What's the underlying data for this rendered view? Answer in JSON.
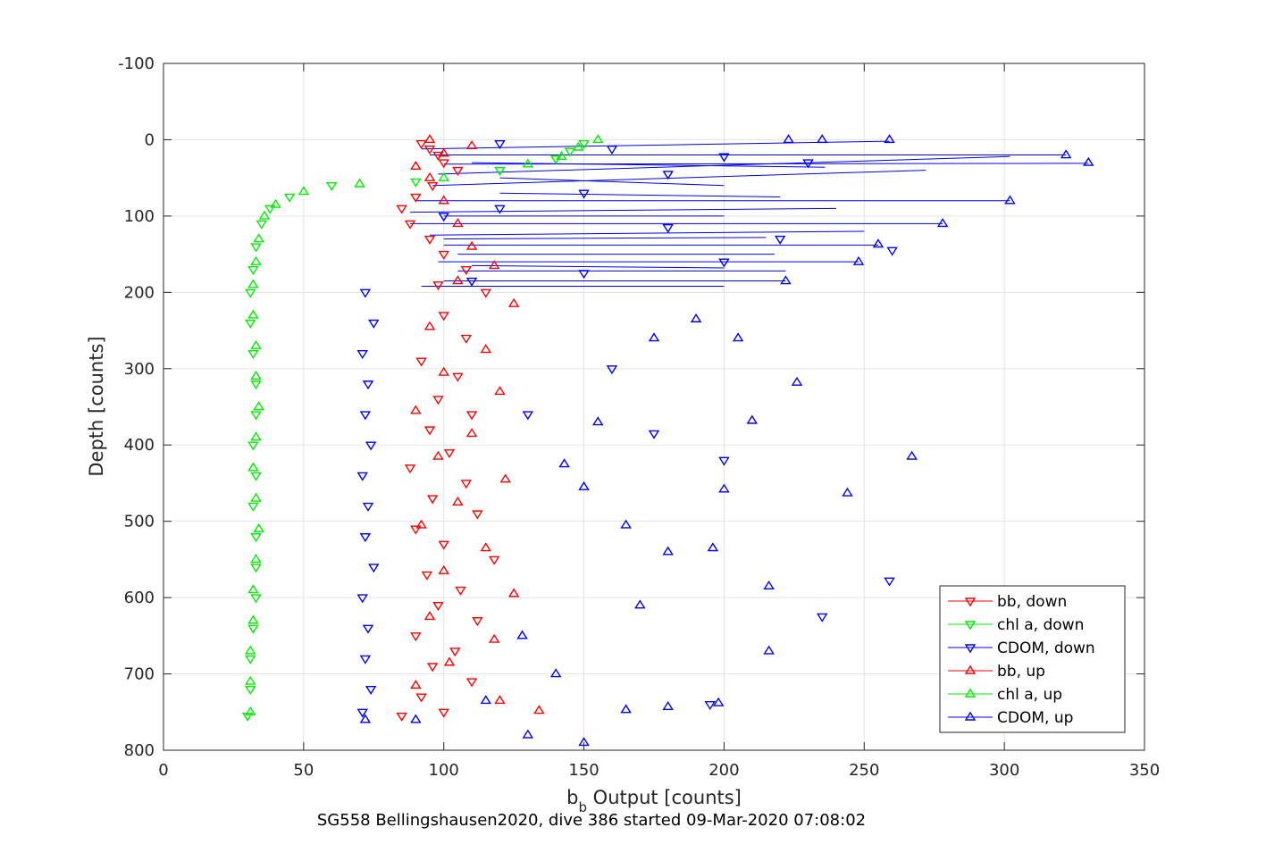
{
  "chart_data": {
    "type": "scatter",
    "xlabel_base": "b",
    "xlabel_sub": "b",
    "xlabel_rest": " Output [counts]",
    "ylabel": "Depth [counts]",
    "caption": "SG558 Bellingshausen2020, dive 386 started 09-Mar-2020 07:08:02",
    "xlim": [
      0,
      350
    ],
    "ylim": [
      -100,
      800
    ],
    "y_reversed": true,
    "grid": true,
    "x_ticks": [
      "0",
      "50",
      "100",
      "150",
      "200",
      "250",
      "300",
      "350"
    ],
    "y_ticks": [
      "-100",
      "0",
      "100",
      "200",
      "300",
      "400",
      "500",
      "600",
      "700",
      "800"
    ],
    "legend_position": "bottom-right",
    "series": [
      {
        "name": "bb, down",
        "color": "#ff0000",
        "marker": "triangle-down",
        "points": [
          [
            92,
            5
          ],
          [
            95,
            12
          ],
          [
            98,
            20
          ],
          [
            100,
            30
          ],
          [
            105,
            40
          ],
          [
            96,
            60
          ],
          [
            90,
            75
          ],
          [
            85,
            90
          ],
          [
            88,
            110
          ],
          [
            95,
            130
          ],
          [
            100,
            150
          ],
          [
            108,
            170
          ],
          [
            98,
            190
          ],
          [
            115,
            200
          ],
          [
            100,
            230
          ],
          [
            108,
            260
          ],
          [
            92,
            290
          ],
          [
            105,
            310
          ],
          [
            98,
            340
          ],
          [
            110,
            360
          ],
          [
            95,
            380
          ],
          [
            102,
            410
          ],
          [
            88,
            430
          ],
          [
            108,
            450
          ],
          [
            96,
            470
          ],
          [
            112,
            490
          ],
          [
            90,
            510
          ],
          [
            100,
            530
          ],
          [
            118,
            550
          ],
          [
            94,
            570
          ],
          [
            106,
            590
          ],
          [
            98,
            610
          ],
          [
            112,
            630
          ],
          [
            90,
            650
          ],
          [
            104,
            670
          ],
          [
            96,
            690
          ],
          [
            110,
            710
          ],
          [
            92,
            730
          ],
          [
            100,
            750
          ],
          [
            85,
            755
          ]
        ]
      },
      {
        "name": "chl a, down",
        "color": "#00ee00",
        "marker": "triangle-down",
        "points": [
          [
            150,
            5
          ],
          [
            145,
            15
          ],
          [
            140,
            25
          ],
          [
            120,
            40
          ],
          [
            90,
            55
          ],
          [
            60,
            60
          ],
          [
            45,
            75
          ],
          [
            38,
            90
          ],
          [
            35,
            110
          ],
          [
            33,
            140
          ],
          [
            32,
            170
          ],
          [
            31,
            200
          ],
          [
            31,
            240
          ],
          [
            32,
            280
          ],
          [
            33,
            320
          ],
          [
            33,
            360
          ],
          [
            32,
            400
          ],
          [
            33,
            440
          ],
          [
            32,
            480
          ],
          [
            33,
            520
          ],
          [
            33,
            560
          ],
          [
            33,
            600
          ],
          [
            32,
            640
          ],
          [
            31,
            680
          ],
          [
            31,
            720
          ],
          [
            30,
            755
          ]
        ]
      },
      {
        "name": "CDOM, down",
        "color": "#0000ff",
        "marker": "triangle-down",
        "points": [
          [
            120,
            5
          ],
          [
            160,
            12
          ],
          [
            200,
            22
          ],
          [
            230,
            30
          ],
          [
            180,
            45
          ],
          [
            150,
            70
          ],
          [
            120,
            90
          ],
          [
            100,
            100
          ],
          [
            180,
            115
          ],
          [
            220,
            130
          ],
          [
            260,
            145
          ],
          [
            200,
            160
          ],
          [
            150,
            175
          ],
          [
            110,
            185
          ],
          [
            72,
            200
          ],
          [
            75,
            240
          ],
          [
            71,
            280
          ],
          [
            73,
            320
          ],
          [
            72,
            360
          ],
          [
            74,
            400
          ],
          [
            71,
            440
          ],
          [
            73,
            480
          ],
          [
            72,
            520
          ],
          [
            75,
            560
          ],
          [
            71,
            600
          ],
          [
            73,
            640
          ],
          [
            72,
            680
          ],
          [
            74,
            720
          ],
          [
            71,
            750
          ],
          [
            160,
            300
          ],
          [
            200,
            420
          ],
          [
            235,
            625
          ],
          [
            259,
            578
          ],
          [
            195,
            740
          ],
          [
            175,
            385
          ],
          [
            130,
            360
          ]
        ]
      },
      {
        "name": "bb, up",
        "color": "#ff0000",
        "marker": "triangle-up",
        "points": [
          [
            95,
            0
          ],
          [
            110,
            8
          ],
          [
            100,
            18
          ],
          [
            90,
            35
          ],
          [
            95,
            50
          ],
          [
            100,
            80
          ],
          [
            105,
            110
          ],
          [
            110,
            140
          ],
          [
            118,
            165
          ],
          [
            105,
            185
          ],
          [
            125,
            215
          ],
          [
            95,
            245
          ],
          [
            115,
            275
          ],
          [
            100,
            305
          ],
          [
            120,
            330
          ],
          [
            90,
            355
          ],
          [
            110,
            385
          ],
          [
            98,
            415
          ],
          [
            122,
            445
          ],
          [
            105,
            475
          ],
          [
            92,
            505
          ],
          [
            115,
            535
          ],
          [
            100,
            565
          ],
          [
            125,
            595
          ],
          [
            95,
            625
          ],
          [
            118,
            655
          ],
          [
            102,
            685
          ],
          [
            90,
            715
          ],
          [
            120,
            735
          ],
          [
            134,
            748
          ]
        ]
      },
      {
        "name": "chl a, up",
        "color": "#00ee00",
        "marker": "triangle-up",
        "points": [
          [
            155,
            0
          ],
          [
            148,
            10
          ],
          [
            142,
            22
          ],
          [
            130,
            32
          ],
          [
            100,
            50
          ],
          [
            70,
            58
          ],
          [
            50,
            68
          ],
          [
            40,
            85
          ],
          [
            36,
            100
          ],
          [
            34,
            130
          ],
          [
            33,
            160
          ],
          [
            32,
            190
          ],
          [
            32,
            230
          ],
          [
            33,
            270
          ],
          [
            33,
            310
          ],
          [
            34,
            350
          ],
          [
            33,
            390
          ],
          [
            32,
            430
          ],
          [
            33,
            470
          ],
          [
            34,
            510
          ],
          [
            33,
            550
          ],
          [
            32,
            590
          ],
          [
            32,
            630
          ],
          [
            31,
            670
          ],
          [
            31,
            710
          ],
          [
            31,
            750
          ]
        ]
      },
      {
        "name": "CDOM, up",
        "color": "#0000ff",
        "marker": "triangle-up",
        "points": [
          [
            259,
            0
          ],
          [
            235,
            0
          ],
          [
            223,
            0
          ],
          [
            322,
            20
          ],
          [
            330,
            30
          ],
          [
            302,
            80
          ],
          [
            278,
            110
          ],
          [
            255,
            137
          ],
          [
            248,
            160
          ],
          [
            222,
            185
          ],
          [
            175,
            260
          ],
          [
            190,
            235
          ],
          [
            205,
            260
          ],
          [
            210,
            368
          ],
          [
            226,
            318
          ],
          [
            267,
            415
          ],
          [
            244,
            463
          ],
          [
            200,
            458
          ],
          [
            216,
            585
          ],
          [
            216,
            670
          ],
          [
            170,
            610
          ],
          [
            150,
            455
          ],
          [
            143,
            425
          ],
          [
            155,
            370
          ],
          [
            165,
            505
          ],
          [
            180,
            540
          ],
          [
            196,
            535
          ],
          [
            198,
            738
          ],
          [
            180,
            743
          ],
          [
            165,
            747
          ],
          [
            150,
            790
          ],
          [
            115,
            735
          ],
          [
            90,
            760
          ],
          [
            72,
            760
          ],
          [
            130,
            780
          ],
          [
            128,
            650
          ],
          [
            140,
            700
          ]
        ]
      }
    ],
    "cast_lines": [
      [
        [
          92,
          12
        ],
        [
          259,
          2
        ]
      ],
      [
        [
          95,
          20
        ],
        [
          322,
          20
        ]
      ],
      [
        [
          100,
          32
        ],
        [
          330,
          31
        ]
      ],
      [
        [
          98,
          45
        ],
        [
          302,
          22
        ]
      ],
      [
        [
          96,
          60
        ],
        [
          272,
          40
        ]
      ],
      [
        [
          90,
          80
        ],
        [
          302,
          80
        ]
      ],
      [
        [
          88,
          95
        ],
        [
          240,
          90
        ]
      ],
      [
        [
          88,
          110
        ],
        [
          278,
          110
        ]
      ],
      [
        [
          95,
          125
        ],
        [
          250,
          120
        ]
      ],
      [
        [
          100,
          138
        ],
        [
          255,
          138
        ]
      ],
      [
        [
          105,
          150
        ],
        [
          218,
          150
        ]
      ],
      [
        [
          98,
          160
        ],
        [
          248,
          160
        ]
      ],
      [
        [
          105,
          172
        ],
        [
          222,
          172
        ]
      ],
      [
        [
          100,
          185
        ],
        [
          222,
          185
        ]
      ],
      [
        [
          92,
          192
        ],
        [
          200,
          192
        ]
      ],
      [
        [
          110,
          30
        ],
        [
          236,
          36
        ]
      ],
      [
        [
          120,
          50
        ],
        [
          200,
          60
        ]
      ],
      [
        [
          120,
          70
        ],
        [
          220,
          75
        ]
      ],
      [
        [
          100,
          100
        ],
        [
          200,
          100
        ]
      ],
      [
        [
          100,
          130
        ],
        [
          215,
          128
        ]
      ],
      [
        [
          110,
          165
        ],
        [
          200,
          168
        ]
      ]
    ]
  },
  "legend": {
    "items": [
      {
        "label": "bb, down",
        "color": "#ff0000",
        "marker": "triangle-down"
      },
      {
        "label": "chl a, down",
        "color": "#00ee00",
        "marker": "triangle-down"
      },
      {
        "label": "CDOM, down",
        "color": "#0000ff",
        "marker": "triangle-down"
      },
      {
        "label": "bb, up",
        "color": "#ff0000",
        "marker": "triangle-up"
      },
      {
        "label": "chl a, up",
        "color": "#00ee00",
        "marker": "triangle-up"
      },
      {
        "label": "CDOM, up",
        "color": "#0000ff",
        "marker": "triangle-up"
      }
    ]
  }
}
